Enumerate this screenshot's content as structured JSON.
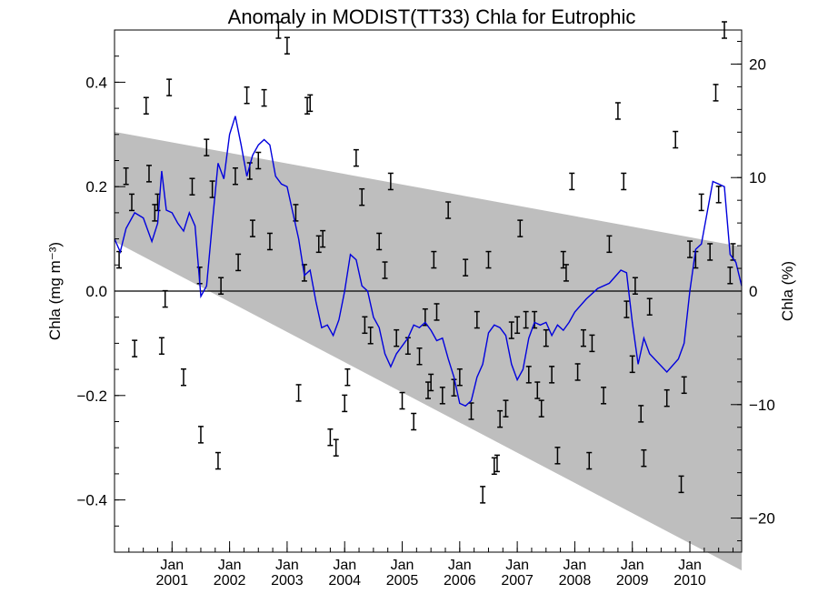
{
  "chart_data": {
    "type": "line",
    "title": "Anomaly in MODIST(TT33) Chla for Eutrophic",
    "ylabel_left": "Chla (mg m⁻³)",
    "ylabel_right": "Chla (%)",
    "xlabel": "",
    "xlim": [
      2000.0,
      2010.9
    ],
    "ylim": [
      -0.5,
      0.5
    ],
    "ylim_right": [
      -23,
      23
    ],
    "x_ticks": [
      {
        "value": 2001.0,
        "top": "Jan",
        "bottom": "2001"
      },
      {
        "value": 2002.0,
        "top": "Jan",
        "bottom": "2002"
      },
      {
        "value": 2003.0,
        "top": "Jan",
        "bottom": "2003"
      },
      {
        "value": 2004.0,
        "top": "Jan",
        "bottom": "2004"
      },
      {
        "value": 2005.0,
        "top": "Jan",
        "bottom": "2005"
      },
      {
        "value": 2006.0,
        "top": "Jan",
        "bottom": "2006"
      },
      {
        "value": 2007.0,
        "top": "Jan",
        "bottom": "2007"
      },
      {
        "value": 2008.0,
        "top": "Jan",
        "bottom": "2008"
      },
      {
        "value": 2009.0,
        "top": "Jan",
        "bottom": "2009"
      },
      {
        "value": 2010.0,
        "top": "Jan",
        "bottom": "2010"
      }
    ],
    "y_ticks_left": [
      {
        "value": 0.4,
        "label": "0.4"
      },
      {
        "value": 0.2,
        "label": "0.2"
      },
      {
        "value": 0.0,
        "label": "0.0"
      },
      {
        "value": -0.2,
        "label": "−0.2"
      },
      {
        "value": -0.4,
        "label": "−0.4"
      }
    ],
    "y_ticks_right": [
      {
        "value": 20,
        "label": "20"
      },
      {
        "value": 10,
        "label": "10"
      },
      {
        "value": 0,
        "label": "0"
      },
      {
        "value": -10,
        "label": "−10"
      },
      {
        "value": -20,
        "label": "−20"
      }
    ],
    "trend_band": {
      "upper": [
        [
          2000.0,
          0.305
        ],
        [
          2010.9,
          0.085
        ]
      ],
      "lower": [
        [
          2000.0,
          0.095
        ],
        [
          2010.9,
          -0.535
        ]
      ],
      "color": "#bebebe"
    },
    "zero_line": 0,
    "smoothed_series": {
      "color": "#0000dd",
      "points": [
        [
          2000.0,
          0.1
        ],
        [
          2000.1,
          0.075
        ],
        [
          2000.2,
          0.12
        ],
        [
          2000.35,
          0.15
        ],
        [
          2000.5,
          0.14
        ],
        [
          2000.65,
          0.095
        ],
        [
          2000.75,
          0.13
        ],
        [
          2000.82,
          0.23
        ],
        [
          2000.9,
          0.155
        ],
        [
          2001.0,
          0.15
        ],
        [
          2001.1,
          0.13
        ],
        [
          2001.2,
          0.115
        ],
        [
          2001.3,
          0.15
        ],
        [
          2001.4,
          0.125
        ],
        [
          2001.5,
          -0.01
        ],
        [
          2001.6,
          0.01
        ],
        [
          2001.7,
          0.13
        ],
        [
          2001.8,
          0.245
        ],
        [
          2001.9,
          0.215
        ],
        [
          2002.0,
          0.3
        ],
        [
          2002.1,
          0.335
        ],
        [
          2002.2,
          0.28
        ],
        [
          2002.3,
          0.22
        ],
        [
          2002.4,
          0.26
        ],
        [
          2002.5,
          0.28
        ],
        [
          2002.6,
          0.29
        ],
        [
          2002.7,
          0.28
        ],
        [
          2002.8,
          0.22
        ],
        [
          2002.9,
          0.205
        ],
        [
          2003.0,
          0.2
        ],
        [
          2003.1,
          0.15
        ],
        [
          2003.2,
          0.1
        ],
        [
          2003.3,
          0.03
        ],
        [
          2003.4,
          0.04
        ],
        [
          2003.5,
          -0.02
        ],
        [
          2003.6,
          -0.07
        ],
        [
          2003.7,
          -0.065
        ],
        [
          2003.8,
          -0.085
        ],
        [
          2003.9,
          -0.055
        ],
        [
          2004.0,
          0.0
        ],
        [
          2004.1,
          0.07
        ],
        [
          2004.2,
          0.06
        ],
        [
          2004.3,
          0.01
        ],
        [
          2004.4,
          0.0
        ],
        [
          2004.5,
          -0.05
        ],
        [
          2004.6,
          -0.07
        ],
        [
          2004.7,
          -0.12
        ],
        [
          2004.8,
          -0.145
        ],
        [
          2004.9,
          -0.12
        ],
        [
          2005.0,
          -0.105
        ],
        [
          2005.1,
          -0.09
        ],
        [
          2005.2,
          -0.065
        ],
        [
          2005.3,
          -0.07
        ],
        [
          2005.4,
          -0.06
        ],
        [
          2005.5,
          -0.075
        ],
        [
          2005.6,
          -0.095
        ],
        [
          2005.7,
          -0.09
        ],
        [
          2005.8,
          -0.13
        ],
        [
          2005.9,
          -0.165
        ],
        [
          2006.0,
          -0.215
        ],
        [
          2006.1,
          -0.22
        ],
        [
          2006.2,
          -0.21
        ],
        [
          2006.3,
          -0.165
        ],
        [
          2006.4,
          -0.14
        ],
        [
          2006.5,
          -0.08
        ],
        [
          2006.6,
          -0.065
        ],
        [
          2006.7,
          -0.07
        ],
        [
          2006.8,
          -0.085
        ],
        [
          2006.9,
          -0.14
        ],
        [
          2007.0,
          -0.17
        ],
        [
          2007.1,
          -0.15
        ],
        [
          2007.2,
          -0.09
        ],
        [
          2007.3,
          -0.06
        ],
        [
          2007.4,
          -0.065
        ],
        [
          2007.5,
          -0.06
        ],
        [
          2007.6,
          -0.085
        ],
        [
          2007.7,
          -0.065
        ],
        [
          2007.8,
          -0.075
        ],
        [
          2007.9,
          -0.06
        ],
        [
          2008.0,
          -0.04
        ],
        [
          2008.2,
          -0.015
        ],
        [
          2008.4,
          0.005
        ],
        [
          2008.6,
          0.015
        ],
        [
          2008.8,
          0.04
        ],
        [
          2008.9,
          0.035
        ],
        [
          2009.0,
          -0.06
        ],
        [
          2009.1,
          -0.14
        ],
        [
          2009.2,
          -0.09
        ],
        [
          2009.3,
          -0.12
        ],
        [
          2009.6,
          -0.155
        ],
        [
          2009.8,
          -0.13
        ],
        [
          2009.9,
          -0.1
        ],
        [
          2010.0,
          0.0
        ],
        [
          2010.1,
          0.08
        ],
        [
          2010.2,
          0.09
        ],
        [
          2010.3,
          0.15
        ],
        [
          2010.4,
          0.21
        ],
        [
          2010.5,
          0.205
        ],
        [
          2010.6,
          0.2
        ],
        [
          2010.7,
          0.07
        ],
        [
          2010.8,
          0.055
        ],
        [
          2010.9,
          0.01
        ]
      ]
    },
    "monthly_anomalies_with_error_bars": [
      [
        2000.08,
        0.06
      ],
      [
        2000.2,
        0.22
      ],
      [
        2000.3,
        0.17
      ],
      [
        2000.35,
        -0.11
      ],
      [
        2000.55,
        0.355
      ],
      [
        2000.6,
        0.225
      ],
      [
        2000.7,
        0.15
      ],
      [
        2000.75,
        0.17
      ],
      [
        2000.82,
        -0.105
      ],
      [
        2000.88,
        -0.015
      ],
      [
        2000.95,
        0.39
      ],
      [
        2001.2,
        -0.165
      ],
      [
        2001.35,
        0.2
      ],
      [
        2001.48,
        0.03
      ],
      [
        2001.5,
        -0.275
      ],
      [
        2001.6,
        0.275
      ],
      [
        2001.7,
        0.195
      ],
      [
        2001.8,
        -0.325
      ],
      [
        2001.85,
        0.01
      ],
      [
        2002.1,
        0.22
      ],
      [
        2002.15,
        0.055
      ],
      [
        2002.3,
        0.375
      ],
      [
        2002.35,
        0.23
      ],
      [
        2002.4,
        0.12
      ],
      [
        2002.5,
        0.25
      ],
      [
        2002.6,
        0.37
      ],
      [
        2002.7,
        0.095
      ],
      [
        2002.85,
        0.5
      ],
      [
        2003.0,
        0.47
      ],
      [
        2003.15,
        0.15
      ],
      [
        2003.2,
        -0.195
      ],
      [
        2003.3,
        0.035
      ],
      [
        2003.35,
        0.355
      ],
      [
        2003.4,
        0.36
      ],
      [
        2003.55,
        0.09
      ],
      [
        2003.62,
        0.1
      ],
      [
        2003.75,
        -0.28
      ],
      [
        2003.85,
        -0.3
      ],
      [
        2004.0,
        -0.215
      ],
      [
        2004.05,
        -0.165
      ],
      [
        2004.2,
        0.255
      ],
      [
        2004.3,
        0.18
      ],
      [
        2004.35,
        -0.065
      ],
      [
        2004.45,
        -0.085
      ],
      [
        2004.6,
        0.095
      ],
      [
        2004.7,
        0.04
      ],
      [
        2004.8,
        0.21
      ],
      [
        2004.9,
        -0.09
      ],
      [
        2005.0,
        -0.21
      ],
      [
        2005.1,
        -0.105
      ],
      [
        2005.2,
        -0.25
      ],
      [
        2005.3,
        -0.125
      ],
      [
        2005.4,
        -0.05
      ],
      [
        2005.45,
        -0.19
      ],
      [
        2005.5,
        -0.175
      ],
      [
        2005.55,
        0.06
      ],
      [
        2005.6,
        -0.04
      ],
      [
        2005.7,
        -0.2
      ],
      [
        2005.8,
        0.155
      ],
      [
        2005.9,
        -0.185
      ],
      [
        2006.0,
        -0.165
      ],
      [
        2006.1,
        0.045
      ],
      [
        2006.2,
        -0.23
      ],
      [
        2006.3,
        -0.055
      ],
      [
        2006.4,
        -0.39
      ],
      [
        2006.5,
        0.06
      ],
      [
        2006.6,
        -0.335
      ],
      [
        2006.65,
        -0.33
      ],
      [
        2006.7,
        -0.245
      ],
      [
        2006.8,
        -0.225
      ],
      [
        2006.9,
        -0.075
      ],
      [
        2007.0,
        -0.065
      ],
      [
        2007.05,
        0.12
      ],
      [
        2007.15,
        -0.055
      ],
      [
        2007.2,
        -0.16
      ],
      [
        2007.3,
        -0.055
      ],
      [
        2007.35,
        -0.19
      ],
      [
        2007.42,
        -0.225
      ],
      [
        2007.5,
        -0.09
      ],
      [
        2007.6,
        -0.16
      ],
      [
        2007.7,
        -0.315
      ],
      [
        2007.8,
        0.06
      ],
      [
        2007.85,
        0.035
      ],
      [
        2007.95,
        0.21
      ],
      [
        2008.05,
        -0.155
      ],
      [
        2008.15,
        -0.09
      ],
      [
        2008.25,
        -0.325
      ],
      [
        2008.3,
        -0.1
      ],
      [
        2008.5,
        -0.2
      ],
      [
        2008.6,
        0.09
      ],
      [
        2008.75,
        0.345
      ],
      [
        2008.85,
        0.21
      ],
      [
        2008.9,
        -0.035
      ],
      [
        2009.0,
        -0.14
      ],
      [
        2009.05,
        0.01
      ],
      [
        2009.15,
        -0.235
      ],
      [
        2009.2,
        -0.32
      ],
      [
        2009.3,
        -0.03
      ],
      [
        2009.6,
        -0.205
      ],
      [
        2009.75,
        0.29
      ],
      [
        2009.85,
        -0.37
      ],
      [
        2009.9,
        -0.18
      ],
      [
        2010.0,
        0.08
      ],
      [
        2010.1,
        0.06
      ],
      [
        2010.2,
        0.17
      ],
      [
        2010.35,
        0.075
      ],
      [
        2010.45,
        0.38
      ],
      [
        2010.5,
        0.185
      ],
      [
        2010.6,
        0.5
      ],
      [
        2010.7,
        0.03
      ],
      [
        2010.75,
        0.075
      ]
    ]
  }
}
